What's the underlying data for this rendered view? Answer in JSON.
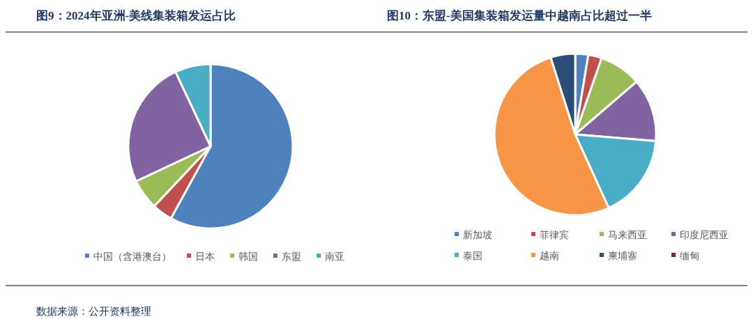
{
  "chart_data": [
    {
      "type": "pie",
      "title": "图9：2024年亚洲-美线集装箱发运占比",
      "categories": [
        "中国（含港澳台）",
        "日本",
        "韩国",
        "东盟",
        "南亚"
      ],
      "values": [
        58,
        4,
        6,
        25,
        7
      ],
      "colors": [
        "#4f81bd",
        "#c0504d",
        "#9bbb59",
        "#8064a2",
        "#4bacc6"
      ],
      "legend": "bottom",
      "annotations": [
        "数据来源：公开资料整理"
      ]
    },
    {
      "type": "pie",
      "title": "图10：东盟-美国集装箱发运量中越南占比超过一半",
      "categories": [
        "新加坡",
        "菲律宾",
        "马来西亚",
        "印度尼西亚",
        "泰国",
        "越南",
        "柬埔寨",
        "缅甸"
      ],
      "values": [
        2.6,
        2.7,
        8.4,
        12.6,
        16.9,
        51.9,
        4.9,
        0
      ],
      "colors": [
        "#4f81bd",
        "#c0504d",
        "#9bbb59",
        "#8064a2",
        "#4bacc6",
        "#f79646",
        "#2c4d75",
        "#772c2a"
      ],
      "legend": "bottom"
    }
  ]
}
